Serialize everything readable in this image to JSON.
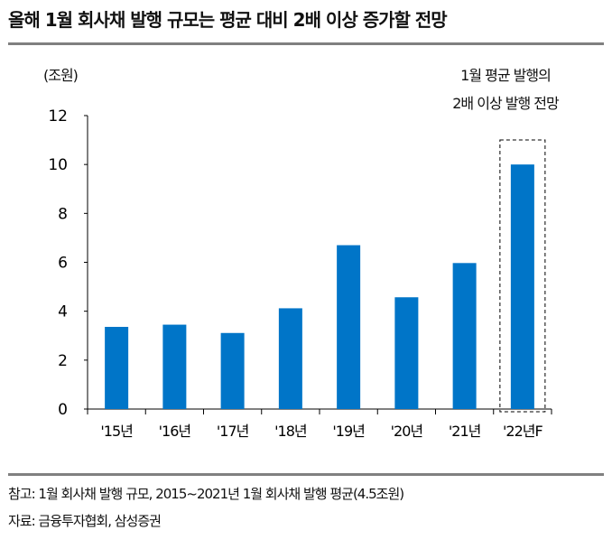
{
  "title": "올해 1월 회사채 발행 규모는 평균 대비 2배 이상 증가할 전망",
  "unit_label": "(조원)",
  "annotation": [
    "1월 평균 발행의",
    "2배 이상 발행 전망"
  ],
  "footer": {
    "note": "참고: 1월 회사채 발행 규모, 2015~2021년 1월 회사채 발행 평균(4.5조원)",
    "source": "자료: 금융투자협회, 삼성증권"
  },
  "colors": {
    "bar": "#0075C8",
    "rule": "#808080"
  },
  "chart_data": {
    "type": "bar",
    "categories": [
      "'15년",
      "'16년",
      "'17년",
      "'18년",
      "'19년",
      "'20년",
      "'21년",
      "'22년F"
    ],
    "values": [
      3.36,
      3.45,
      3.11,
      4.12,
      6.7,
      4.57,
      5.97,
      10.0
    ],
    "ylim": [
      0,
      12
    ],
    "yticks": [
      0,
      2,
      4,
      6,
      8,
      10,
      12
    ],
    "ylabel": "(조원)",
    "grid": false,
    "highlight": "'22년F"
  }
}
